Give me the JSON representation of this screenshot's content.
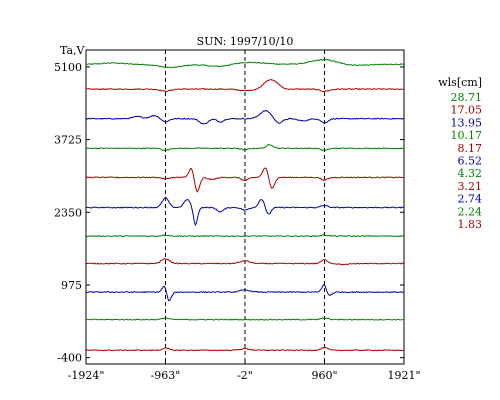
{
  "chart_data": {
    "type": "line",
    "title": "SUN: 1997/10/10",
    "ylabel": "Ta,V",
    "legend_title": "wls[cm]",
    "legend_placement": "right",
    "grid": false,
    "xlim": [
      -1924,
      1921
    ],
    "ylim": [
      -520,
      5420
    ],
    "x_ticks": [
      {
        "value": -1924,
        "label": "-1924\""
      },
      {
        "value": -963,
        "label": "-963\""
      },
      {
        "value": -2,
        "label": "-2\""
      },
      {
        "value": 960,
        "label": "960\""
      },
      {
        "value": 1921,
        "label": "1921\""
      }
    ],
    "y_ticks": [
      {
        "value": 5100,
        "label": "5100"
      },
      {
        "value": 3725,
        "label": "3725"
      },
      {
        "value": 2350,
        "label": "2350"
      },
      {
        "value": 975,
        "label": "975"
      },
      {
        "value": -400,
        "label": "-400"
      }
    ],
    "vlines": [
      -963,
      -2,
      960
    ],
    "features_note_x": {
      "limb_left": -963,
      "center": -2,
      "limb_right": 960
    },
    "series": [
      {
        "name": "28.71",
        "color": "#008000",
        "baseline": 5150,
        "features": [
          [
            -1600,
            25,
            120
          ],
          [
            -900,
            -60,
            140
          ],
          [
            -2,
            40,
            200
          ],
          [
            -300,
            -50,
            150
          ],
          [
            960,
            90,
            150
          ],
          [
            1300,
            -20,
            200
          ]
        ]
      },
      {
        "name": "17.05",
        "color": "#aa0000",
        "baseline": 4680,
        "features": [
          [
            -963,
            -40,
            60
          ],
          [
            -2,
            -30,
            80
          ],
          [
            280,
            160,
            60
          ],
          [
            380,
            90,
            50
          ],
          [
            960,
            -40,
            60
          ]
        ]
      },
      {
        "name": "13.95",
        "color": "#0000aa",
        "baseline": 4120,
        "features": [
          [
            -1300,
            40,
            60
          ],
          [
            -1100,
            60,
            50
          ],
          [
            -963,
            -60,
            40
          ],
          [
            -500,
            -100,
            50
          ],
          [
            -300,
            -60,
            40
          ],
          [
            250,
            150,
            70
          ],
          [
            400,
            -90,
            50
          ],
          [
            700,
            -40,
            60
          ],
          [
            960,
            -80,
            40
          ]
        ]
      },
      {
        "name": "10.17",
        "color": "#008000",
        "baseline": 3560,
        "features": [
          [
            -963,
            -40,
            40
          ],
          [
            -2,
            -30,
            40
          ],
          [
            300,
            70,
            40
          ],
          [
            960,
            -40,
            40
          ]
        ]
      },
      {
        "name": "8.17",
        "color": "#aa0000",
        "baseline": 3010,
        "features": [
          [
            -963,
            -30,
            40
          ],
          [
            -650,
            180,
            30
          ],
          [
            -580,
            -280,
            30
          ],
          [
            -400,
            -40,
            50
          ],
          [
            -2,
            -60,
            40
          ],
          [
            250,
            200,
            35
          ],
          [
            320,
            -220,
            35
          ],
          [
            960,
            -50,
            40
          ]
        ]
      },
      {
        "name": "6.52",
        "color": "#0000aa",
        "baseline": 2440,
        "features": [
          [
            -963,
            180,
            40
          ],
          [
            -700,
            150,
            40
          ],
          [
            -600,
            -330,
            25
          ],
          [
            -300,
            -80,
            40
          ],
          [
            -2,
            -50,
            40
          ],
          [
            200,
            160,
            35
          ],
          [
            280,
            -140,
            30
          ],
          [
            960,
            40,
            40
          ]
        ]
      },
      {
        "name": "4.32",
        "color": "#008000",
        "baseline": 1900,
        "features": [
          [
            -963,
            20,
            40
          ],
          [
            960,
            20,
            40
          ]
        ]
      },
      {
        "name": "3.21",
        "color": "#aa0000",
        "baseline": 1380,
        "features": [
          [
            -963,
            90,
            50
          ],
          [
            -2,
            50,
            60
          ],
          [
            960,
            70,
            40
          ],
          [
            1200,
            -20,
            60
          ]
        ]
      },
      {
        "name": "2.74",
        "color": "#0000aa",
        "baseline": 840,
        "features": [
          [
            -963,
            200,
            30
          ],
          [
            -930,
            -250,
            30
          ],
          [
            -2,
            40,
            60
          ],
          [
            960,
            220,
            30
          ],
          [
            990,
            -120,
            40
          ]
        ]
      },
      {
        "name": "2.24",
        "color": "#008000",
        "baseline": 320,
        "features": [
          [
            -963,
            30,
            40
          ],
          [
            960,
            30,
            40
          ]
        ]
      },
      {
        "name": "1.83",
        "color": "#aa0000",
        "baseline": -260,
        "features": [
          [
            -963,
            40,
            40
          ],
          [
            -2,
            30,
            60
          ],
          [
            960,
            50,
            40
          ]
        ]
      }
    ]
  }
}
